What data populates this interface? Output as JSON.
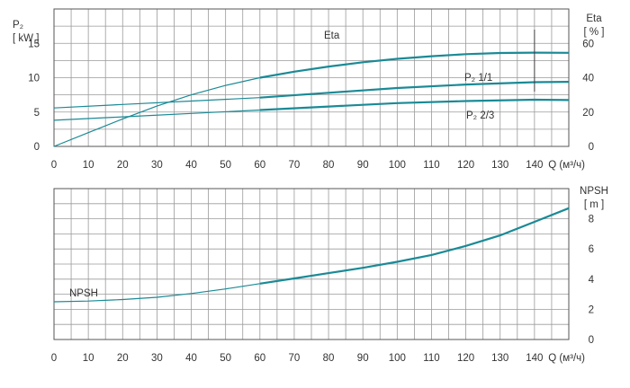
{
  "chart_data": [
    {
      "type": "line",
      "name": "power-efficiency-chart",
      "x": {
        "ticks": [
          0,
          10,
          20,
          30,
          40,
          50,
          60,
          70,
          80,
          90,
          100,
          110,
          120,
          130,
          140
        ],
        "range": [
          0,
          150
        ],
        "label": "Q (м³/ч)"
      },
      "y_left": {
        "label_line1": "P₂",
        "label_line2": "[ kW ]",
        "ticks": [
          0,
          5,
          10,
          15
        ],
        "range": [
          0,
          20
        ]
      },
      "y_right": {
        "label_line1": "Eta",
        "label_line2": "[ % ]",
        "ticks": [
          0,
          20,
          40,
          60
        ],
        "range": [
          0,
          80
        ]
      },
      "grid": true,
      "series": [
        {
          "name": "Eta",
          "axis": "right",
          "color": "#1a8a96",
          "points": [
            [
              0,
              0
            ],
            [
              10,
              8
            ],
            [
              20,
              16
            ],
            [
              30,
              23.5
            ],
            [
              40,
              30
            ],
            [
              50,
              35.5
            ],
            [
              60,
              40
            ],
            [
              70,
              43.5
            ],
            [
              80,
              46.5
            ],
            [
              90,
              49
            ],
            [
              100,
              51
            ],
            [
              110,
              52.5
            ],
            [
              120,
              53.7
            ],
            [
              130,
              54.4
            ],
            [
              140,
              54.6
            ],
            [
              150,
              54.5
            ]
          ]
        },
        {
          "name": "P₂ 1/1",
          "axis": "left",
          "color": "#1a8a96",
          "points": [
            [
              0,
              5.6
            ],
            [
              20,
              6.1
            ],
            [
              40,
              6.6
            ],
            [
              60,
              7.1
            ],
            [
              80,
              7.8
            ],
            [
              100,
              8.5
            ],
            [
              120,
              9.0
            ],
            [
              140,
              9.35
            ],
            [
              150,
              9.4
            ]
          ]
        },
        {
          "name": "P₂ 2/3",
          "axis": "left",
          "color": "#1a8a96",
          "points": [
            [
              0,
              3.8
            ],
            [
              20,
              4.3
            ],
            [
              40,
              4.8
            ],
            [
              60,
              5.3
            ],
            [
              80,
              5.8
            ],
            [
              100,
              6.3
            ],
            [
              120,
              6.6
            ],
            [
              140,
              6.8
            ],
            [
              150,
              6.75
            ]
          ]
        }
      ]
    },
    {
      "type": "line",
      "name": "npsh-chart",
      "x": {
        "ticks": [
          0,
          10,
          20,
          30,
          40,
          50,
          60,
          70,
          80,
          90,
          100,
          110,
          120,
          130,
          140
        ],
        "range": [
          0,
          150
        ],
        "label": "Q (м³/ч)"
      },
      "y_right": {
        "label_line1": "NPSH",
        "label_line2": "[ m ]",
        "ticks": [
          0,
          2,
          4,
          6,
          8
        ],
        "range": [
          0,
          10
        ]
      },
      "grid": true,
      "series": [
        {
          "name": "NPSH",
          "axis": "right",
          "color": "#1a8a96",
          "points": [
            [
              0,
              2.5
            ],
            [
              10,
              2.55
            ],
            [
              20,
              2.65
            ],
            [
              30,
              2.8
            ],
            [
              40,
              3.05
            ],
            [
              50,
              3.35
            ],
            [
              60,
              3.7
            ],
            [
              70,
              4.05
            ],
            [
              80,
              4.4
            ],
            [
              90,
              4.75
            ],
            [
              100,
              5.15
            ],
            [
              110,
              5.6
            ],
            [
              120,
              6.2
            ],
            [
              130,
              6.9
            ],
            [
              140,
              7.8
            ],
            [
              150,
              8.7
            ]
          ]
        }
      ]
    }
  ]
}
